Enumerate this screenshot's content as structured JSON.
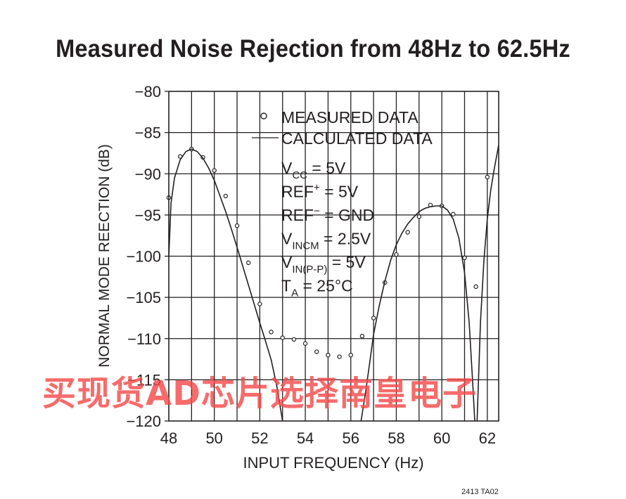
{
  "chart_data": {
    "type": "line",
    "title": "Measured Noise Rejection from 48Hz to 62.5Hz",
    "xlabel": "INPUT FREQUENCY (Hz)",
    "ylabel": "NORMAL MODE REECTION (dB)",
    "xlim": [
      48,
      62.5
    ],
    "ylim": [
      -120,
      -80
    ],
    "xticks": [
      48,
      50,
      52,
      54,
      56,
      58,
      60,
      62
    ],
    "yticks": [
      -80,
      -85,
      -90,
      -95,
      -100,
      -105,
      -110,
      -115,
      -120
    ],
    "grid": true,
    "legend": {
      "placement": "top-center",
      "entries": [
        {
          "symbol": "circle",
          "label": "MEASURED DATA"
        },
        {
          "symbol": "line",
          "label": "CALCULATED DATA"
        }
      ]
    },
    "conditions": [
      {
        "main": "V",
        "sub": "CC",
        "sup": "",
        "rest": " = 5V"
      },
      {
        "main": "REF",
        "sub": "",
        "sup": "+",
        "rest": " = 5V"
      },
      {
        "main": "REF",
        "sub": "",
        "sup": "−",
        "rest": " = GND"
      },
      {
        "main": "V",
        "sub": "INCM",
        "sup": "",
        "rest": " = 2.5V"
      },
      {
        "main": "V",
        "sub": "IN(P-P)",
        "sup": "",
        "rest": " = 5V"
      },
      {
        "main": "T",
        "sub": "A",
        "sup": "",
        "rest": " = 25°C"
      }
    ],
    "series": [
      {
        "name": "MEASURED DATA",
        "style": "markers",
        "points": [
          [
            48.0,
            -92.9
          ],
          [
            48.5,
            -87.9
          ],
          [
            49.0,
            -87.0
          ],
          [
            49.5,
            -88.0
          ],
          [
            50.0,
            -89.6
          ],
          [
            50.5,
            -92.7
          ],
          [
            51.0,
            -96.3
          ],
          [
            51.5,
            -100.8
          ],
          [
            52.0,
            -105.8
          ],
          [
            52.5,
            -109.2
          ],
          [
            53.0,
            -109.9
          ],
          [
            53.5,
            -110.1
          ],
          [
            54.0,
            -110.6
          ],
          [
            54.5,
            -111.6
          ],
          [
            55.0,
            -112.0
          ],
          [
            55.5,
            -112.2
          ],
          [
            56.0,
            -112.0
          ],
          [
            56.5,
            -109.7
          ],
          [
            57.0,
            -107.5
          ],
          [
            57.5,
            -103.2
          ],
          [
            58.0,
            -99.8
          ],
          [
            58.5,
            -97.1
          ],
          [
            59.0,
            -95.2
          ],
          [
            59.5,
            -93.8
          ],
          [
            60.0,
            -93.9
          ],
          [
            60.5,
            -94.9
          ],
          [
            61.0,
            -100.2
          ],
          [
            61.5,
            -103.7
          ],
          [
            62.0,
            -90.4
          ]
        ]
      },
      {
        "name": "CALCULATED DATA",
        "style": "line",
        "segments": [
          [
            [
              48.0,
              -100.0
            ],
            [
              48.1,
              -93.5
            ],
            [
              48.25,
              -90.5
            ],
            [
              48.5,
              -88.3
            ],
            [
              48.75,
              -87.3
            ],
            [
              49.0,
              -87.0
            ],
            [
              49.25,
              -87.3
            ],
            [
              49.5,
              -88.1
            ],
            [
              49.75,
              -89.3
            ],
            [
              50.0,
              -90.8
            ],
            [
              50.25,
              -92.7
            ],
            [
              50.5,
              -94.6
            ],
            [
              50.75,
              -96.7
            ],
            [
              51.0,
              -98.9
            ],
            [
              51.25,
              -101.2
            ],
            [
              51.5,
              -103.5
            ],
            [
              51.75,
              -105.8
            ],
            [
              52.0,
              -108.1
            ],
            [
              52.25,
              -110.3
            ],
            [
              52.5,
              -112.6
            ],
            [
              52.75,
              -115.8
            ],
            [
              53.0,
              -120.0
            ]
          ],
          [
            [
              56.45,
              -120.0
            ],
            [
              56.65,
              -116.5
            ],
            [
              56.85,
              -112.5
            ],
            [
              57.0,
              -109.5
            ],
            [
              57.25,
              -106.0
            ],
            [
              57.5,
              -103.0
            ],
            [
              57.75,
              -100.5
            ],
            [
              58.0,
              -98.6
            ],
            [
              58.25,
              -97.2
            ],
            [
              58.5,
              -96.1
            ],
            [
              58.75,
              -95.3
            ],
            [
              59.0,
              -94.6
            ],
            [
              59.25,
              -94.2
            ],
            [
              59.5,
              -94.0
            ],
            [
              59.75,
              -93.9
            ],
            [
              60.0,
              -93.9
            ],
            [
              60.25,
              -94.4
            ],
            [
              60.5,
              -95.5
            ],
            [
              60.75,
              -97.8
            ],
            [
              61.0,
              -102.0
            ],
            [
              61.2,
              -108.0
            ],
            [
              61.35,
              -115.0
            ],
            [
              61.45,
              -120.0
            ]
          ],
          [
            [
              61.55,
              -120.0
            ],
            [
              61.7,
              -108.0
            ],
            [
              61.85,
              -100.5
            ],
            [
              62.0,
              -95.5
            ],
            [
              62.15,
              -92.0
            ],
            [
              62.3,
              -89.5
            ],
            [
              62.5,
              -86.5
            ]
          ]
        ]
      }
    ]
  },
  "figure_code": "2413 TA02",
  "watermark": "买现货AD芯片选择南皇电子"
}
